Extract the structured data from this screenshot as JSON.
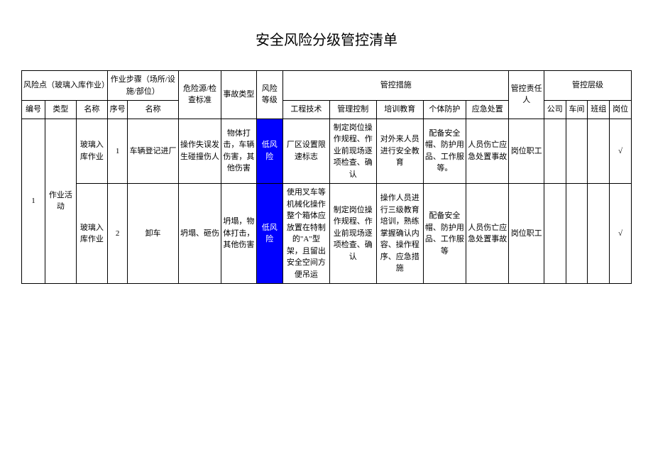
{
  "title": "安全风险分级管控清单",
  "headers": {
    "risk_point": "风险点（玻璃入库作业）",
    "work_step": "作业步骤（场所/设施/部位）",
    "hazard": "危险源/检查标准",
    "accident_type": "事故类型",
    "risk_level": "风险等级",
    "control_measures": "管控措施",
    "responsible": "管控责任人",
    "control_level": "管控层级",
    "no": "编号",
    "type": "类型",
    "name": "名称",
    "seq": "序号",
    "step_name": "名称",
    "eng": "工程技术",
    "mgmt": "管理控制",
    "train": "培训教育",
    "ppe": "个体防护",
    "emergency": "应急处置",
    "company": "公司",
    "workshop": "车间",
    "team": "班组",
    "post": "岗位"
  },
  "risk_no": "1",
  "risk_type": "作业活动",
  "rows": [
    {
      "name": "玻璃入库作业",
      "seq": "1",
      "step": "车辆登记进厂",
      "hazard": "操作失误发生碰撞伤人",
      "accident": "物体打击，车辆伤害，其他伤害",
      "risk_level": "低风险",
      "eng": "厂区设置限速标志",
      "mgmt": "制定岗位操作规程、作业前现场逐项检查、确认",
      "train": "对外来人员进行安全教育",
      "ppe": "配备安全帽、防护用品、工作服等。",
      "emergency": "人员伤亡应急处置事故",
      "responsible": "岗位职工",
      "company": "",
      "workshop": "",
      "team": "",
      "post": "√"
    },
    {
      "name": "玻璃入库作业",
      "seq": "2",
      "step": "卸车",
      "hazard": "坍塌、砸伤",
      "accident": "坍塌，物体打击，其他伤害",
      "risk_level": "低风险",
      "eng": "使用叉车等机械化操作整个箱体应放置在特制的\"A\"型架，且留出安全空间方便吊运",
      "mgmt": "制定岗位操作规程、作业前现场逐项检查、确认",
      "train": "操作人员进行三级教育培训，熟练掌握确认内容、操作程序、应急措施",
      "ppe": "配备安全帽、防护用品、工作服等",
      "emergency": "人员伤亡应急处置事故",
      "responsible": "岗位职工",
      "company": "",
      "workshop": "",
      "team": "",
      "post": "√"
    }
  ]
}
